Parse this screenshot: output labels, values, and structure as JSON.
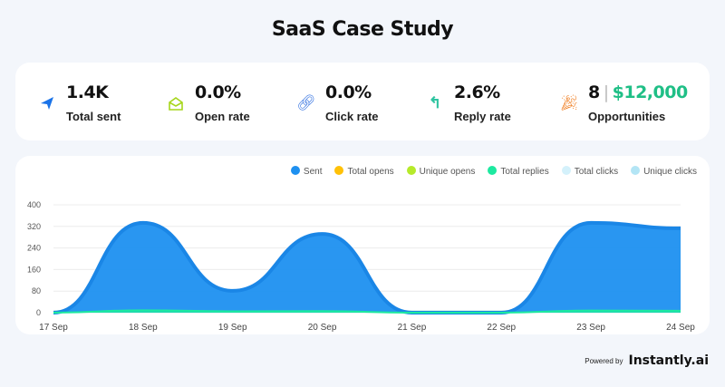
{
  "title": "SaaS Case Study",
  "stats": [
    {
      "icon": "paper-plane-icon",
      "value": "1.4K",
      "label": "Total sent",
      "color": "#1a73e8"
    },
    {
      "icon": "envelope-open-icon",
      "value": "0.0%",
      "label": "Open rate",
      "color": "#a6d61b"
    },
    {
      "icon": "link-icon",
      "value": "0.0%",
      "label": "Click rate",
      "color": "#2f6fe0"
    },
    {
      "icon": "reply-icon",
      "value": "2.6%",
      "label": "Reply rate",
      "color": "#2ec4a0"
    },
    {
      "icon": "party-popper-icon",
      "value": "8",
      "value2": "$12,000",
      "sep": "|",
      "label": "Opportunities",
      "color": "#f07b1d"
    }
  ],
  "chart_data": {
    "type": "area",
    "categories": [
      "17 Sep",
      "18 Sep",
      "19 Sep",
      "20 Sep",
      "21 Sep",
      "22 Sep",
      "23 Sep",
      "24 Sep"
    ],
    "series": [
      {
        "name": "Sent",
        "color": "#1e90f0",
        "values": [
          0,
          333,
          81,
          292,
          0,
          0,
          333,
          313
        ]
      },
      {
        "name": "Total opens",
        "color": "#ffc107",
        "values": [
          0,
          0,
          0,
          0,
          0,
          0,
          0,
          0
        ]
      },
      {
        "name": "Unique opens",
        "color": "#b6ea2a",
        "values": [
          0,
          0,
          0,
          0,
          0,
          0,
          0,
          0
        ]
      },
      {
        "name": "Total replies",
        "color": "#1de9a0",
        "values": [
          0,
          9,
          5,
          6,
          0,
          0,
          8,
          7
        ]
      },
      {
        "name": "Total clicks",
        "color": "#d4f1fb",
        "values": [
          0,
          0,
          0,
          0,
          0,
          0,
          0,
          0
        ]
      },
      {
        "name": "Unique clicks",
        "color": "#b3e5f5",
        "values": [
          0,
          0,
          0,
          0,
          0,
          0,
          0,
          0
        ]
      }
    ],
    "yticks": [
      "0",
      "80",
      "160",
      "240",
      "320",
      "400"
    ],
    "ylim": [
      0,
      400
    ],
    "legend": "top-right",
    "grid": true
  },
  "footer": {
    "powered": "Powered by",
    "brand": "Instantly.ai"
  }
}
